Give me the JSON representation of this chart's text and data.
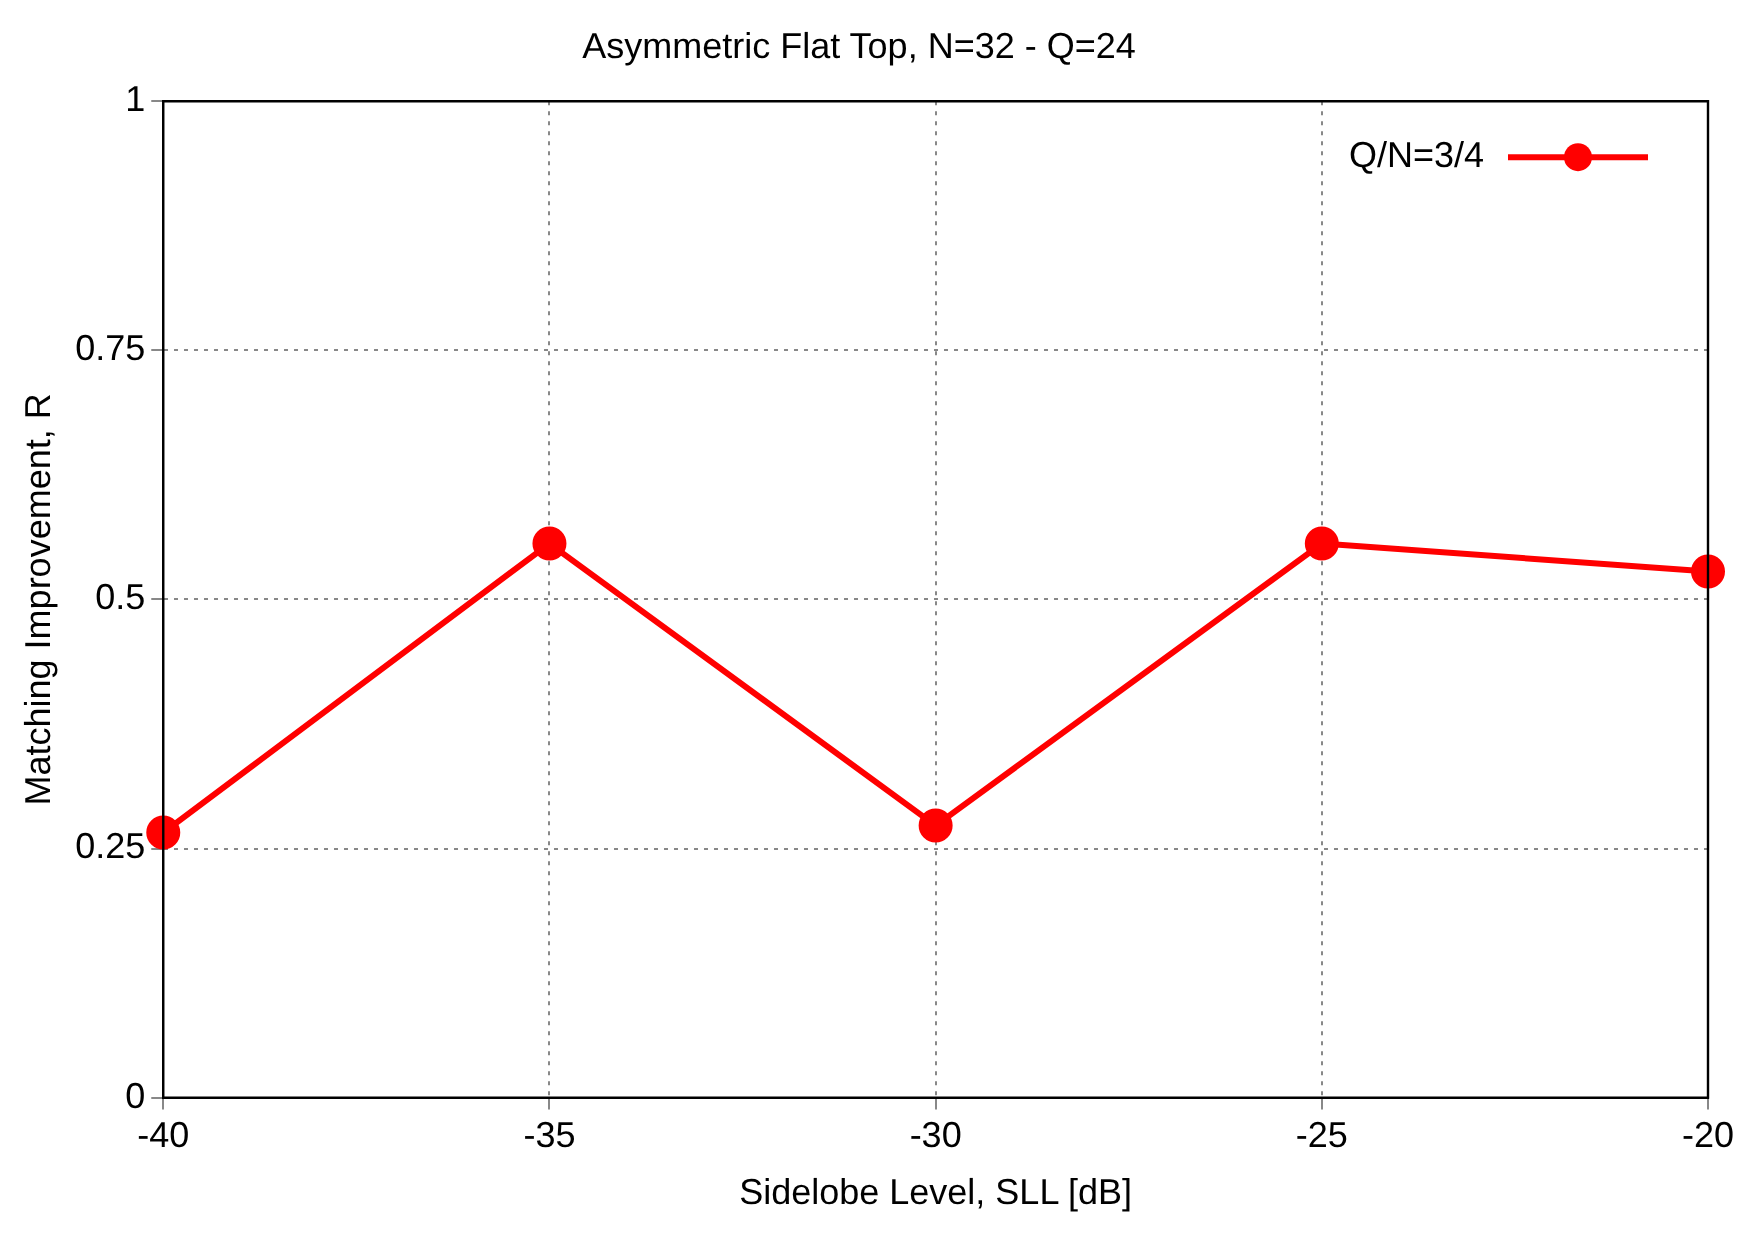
{
  "chart_data": {
    "type": "line",
    "title": "Asymmetric Flat Top, N=32 - Q=24",
    "xlabel": "Sidelobe Level, SLL [dB]",
    "ylabel": "Matching Improvement, R",
    "x": [
      -40,
      -35,
      -30,
      -25,
      -20
    ],
    "series": [
      {
        "name": "Q/N=3/4",
        "color": "#ff0000",
        "values": [
          0.266,
          0.556,
          0.273,
          0.556,
          0.528
        ]
      }
    ],
    "xlim": [
      -40,
      -20
    ],
    "xticks": [
      -40,
      -35,
      -30,
      -25,
      -20
    ],
    "ylim": [
      0,
      1
    ],
    "yticks": [
      0,
      0.25,
      0.5,
      0.75,
      1
    ],
    "grid": true,
    "legend": "top right",
    "marker": "circle",
    "line_style": "solid"
  }
}
